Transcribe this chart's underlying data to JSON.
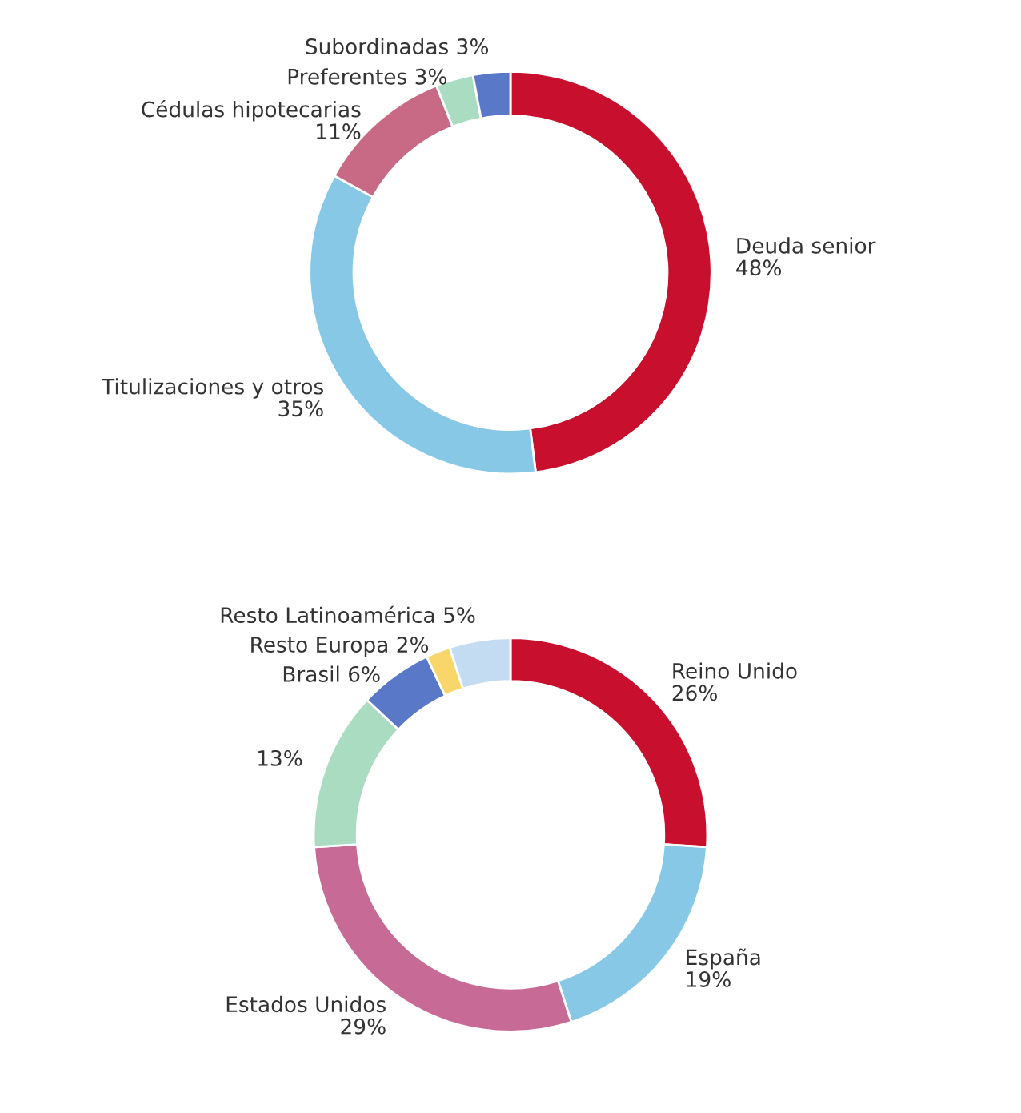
{
  "chart_data": [
    {
      "type": "donut",
      "categories": [
        "Deuda senior",
        "Titulizaciones y otros",
        "Cédulas hipotecarias",
        "Preferentes",
        "Subordinadas"
      ],
      "values": [
        48,
        35,
        11,
        3,
        3
      ],
      "value_labels": [
        "48%",
        "35%",
        "11%",
        "3%",
        "3%"
      ],
      "colors": [
        "#c8102e",
        "#86c8e6",
        "#c86a86",
        "#a9dcc0",
        "#5a78c8"
      ]
    },
    {
      "type": "donut",
      "categories": [
        "Reino Unido",
        "España",
        "Estados Unidos",
        null,
        "Brasil",
        "Resto Europa",
        "Resto Latinoamérica"
      ],
      "values": [
        26,
        19,
        29,
        13,
        6,
        2,
        5
      ],
      "value_labels": [
        "26%",
        "19%",
        "29%",
        "13%",
        "6%",
        "2%",
        "5%"
      ],
      "colors": [
        "#c8102e",
        "#86c8e6",
        "#c86a96",
        "#a9dcc0",
        "#5a78c8",
        "#f8d66a",
        "#c4dcf2"
      ]
    }
  ]
}
